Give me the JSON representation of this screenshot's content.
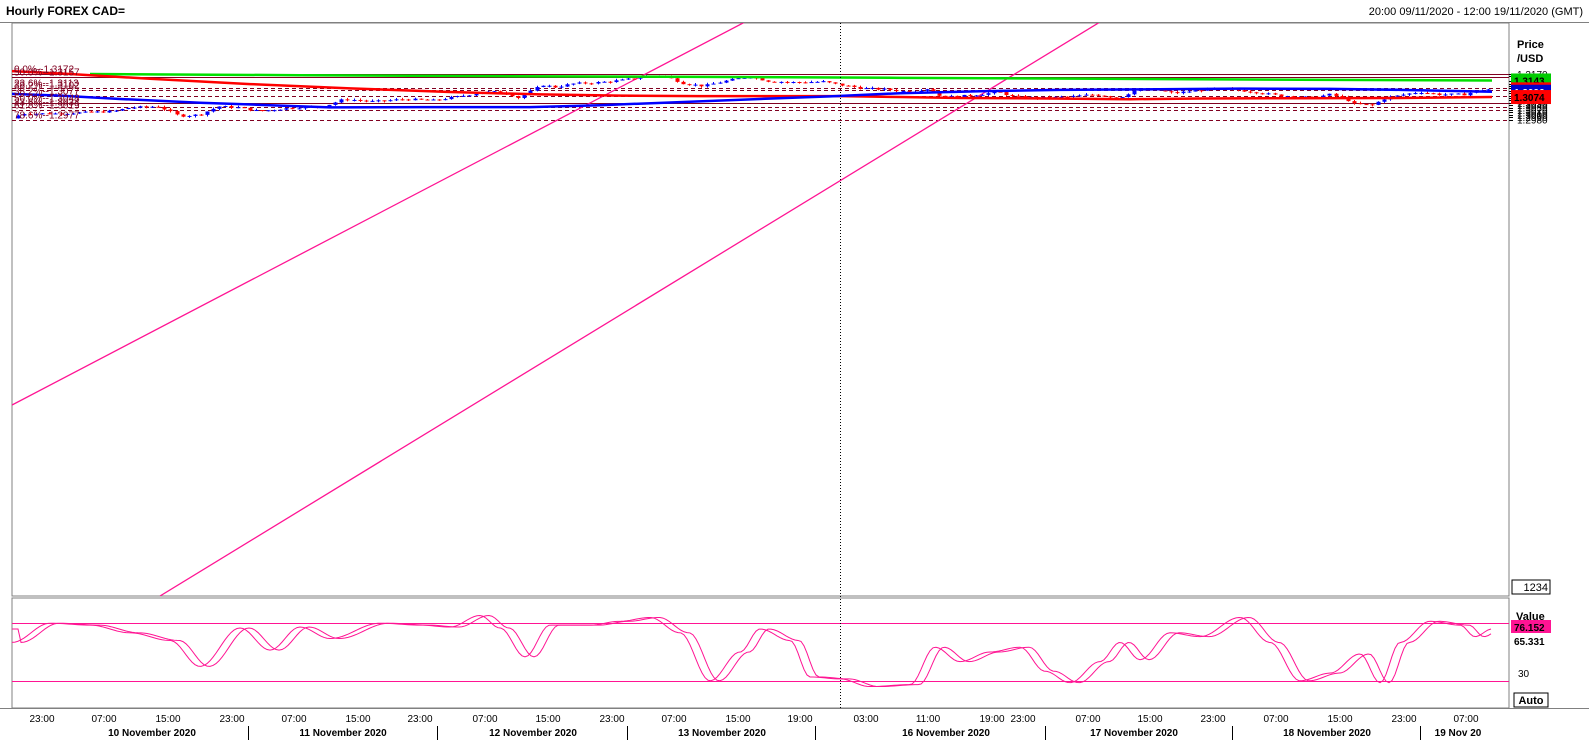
{
  "header": {
    "title": "Hourly FOREX CAD=",
    "range": "20:00 09/11/2020 - 12:00 19/11/2020 (GMT)"
  },
  "axis": {
    "price_label_line1": "Price",
    "price_label_line2": "/USD",
    "value_label": "Value",
    "box_1234": "1234",
    "auto_button": "Auto"
  },
  "chart_data": {
    "type": "candlestick",
    "x_time_labels": [
      "23:00",
      "07:00",
      "15:00",
      "23:00",
      "07:00",
      "15:00",
      "23:00",
      "07:00",
      "15:00",
      "23:00",
      "07:00",
      "15:00",
      "19:00",
      "03:00",
      "11:00",
      "19:00",
      "23:00",
      "07:00",
      "15:00",
      "23:00",
      "07:00",
      "15:00",
      "23:00",
      "07:00"
    ],
    "x_date_labels": [
      "10 November 2020",
      "11 November 2020",
      "12 November 2020",
      "13 November 2020",
      "16 November 2020",
      "17 November 2020",
      "18 November 2020",
      "19 Nov 20"
    ],
    "y_ticks": [
      "1.3170",
      "1.3160",
      "1.3140",
      "1.3130",
      "1.3120",
      "1.3110",
      "1.3100",
      "1.3090",
      "1.3080",
      "1.3070",
      "1.3060",
      "1.3050",
      "1.3040",
      "1.3030",
      "1.3020",
      "1.3010",
      "1.3000",
      "1.2990",
      "1.2980"
    ],
    "ylim": [
      1.2972,
      1.3185
    ],
    "fib_levels": [
      {
        "label": "0.0%--1.3172",
        "value": 1.3172,
        "style": "solid"
      },
      {
        "label": "50.0%--1.3157",
        "value": 1.3157,
        "style": "solid"
      },
      {
        "label": "23.6%--1.3113",
        "value": 1.3113,
        "style": "dashed"
      },
      {
        "label": "38.2%--1.3102",
        "value": 1.3102,
        "style": "dashed"
      },
      {
        "label": "38.2%--1.3077",
        "value": 1.3077,
        "style": "dashed"
      },
      {
        "label": "50.0%--1.3048",
        "value": 1.3048,
        "style": "solid"
      },
      {
        "label": "23.6%--1.3034",
        "value": 1.3034,
        "style": "dashed"
      },
      {
        "label": "61.8%--1.3019",
        "value": 1.3019,
        "style": "dashed"
      },
      {
        "label": "78.6%--1.2977",
        "value": 1.2977,
        "style": "dashed"
      }
    ],
    "price_tags": [
      {
        "value": "1.3143",
        "color": "#00cc00"
      },
      {
        "value": "1.3106",
        "color": "#ff0000"
      },
      {
        "value": "1.3096",
        "color": "#0000cc"
      },
      {
        "value": "1.3074",
        "color": "#ff0000"
      }
    ],
    "oscillator": {
      "ylim": [
        0,
        100
      ],
      "upper_level": 80,
      "lower_level": 20,
      "y_tick": "30",
      "tags": [
        {
          "value": "76.152",
          "color": "#ff1493"
        },
        {
          "value": "65.331",
          "color": "#ffffff"
        }
      ]
    },
    "colors": {
      "up": "#0000ff",
      "down": "#ff0000",
      "ma_green": "#00e000",
      "ma_red": "#ff0000",
      "ma_blue": "#0000ff",
      "channel": "#ff1493",
      "fib": "#800020",
      "osc": "#ff1493"
    }
  }
}
